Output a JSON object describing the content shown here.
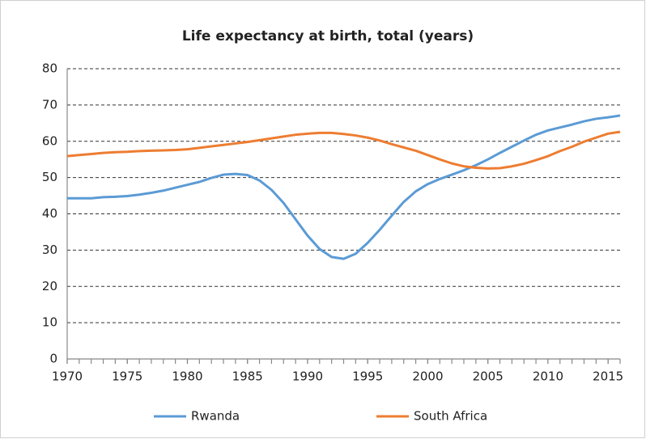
{
  "chart_data": {
    "type": "line",
    "title": "Life expectancy at birth, total (years)",
    "x": [
      1970,
      1971,
      1972,
      1973,
      1974,
      1975,
      1976,
      1977,
      1978,
      1979,
      1980,
      1981,
      1982,
      1983,
      1984,
      1985,
      1986,
      1987,
      1988,
      1989,
      1990,
      1991,
      1992,
      1993,
      1994,
      1995,
      1996,
      1997,
      1998,
      1999,
      2000,
      2001,
      2002,
      2003,
      2004,
      2005,
      2006,
      2007,
      2008,
      2009,
      2010,
      2011,
      2012,
      2013,
      2014,
      2015,
      2016
    ],
    "series": [
      {
        "name": "Rwanda",
        "color": "#5b9bd5",
        "values": [
          44.3,
          44.3,
          44.3,
          44.6,
          44.7,
          44.9,
          45.3,
          45.8,
          46.4,
          47.2,
          48.0,
          48.8,
          49.9,
          50.8,
          51.0,
          50.7,
          49.2,
          46.6,
          43.0,
          38.5,
          34.0,
          30.3,
          28.1,
          27.6,
          29.0,
          32.0,
          35.6,
          39.5,
          43.3,
          46.2,
          48.2,
          49.6,
          50.8,
          52.0,
          53.4,
          55.0,
          56.8,
          58.5,
          60.2,
          61.8,
          63.0,
          63.8,
          64.6,
          65.5,
          66.2,
          66.6,
          67.1
        ]
      },
      {
        "name": "South Africa",
        "color": "#ed7d31",
        "values": [
          55.9,
          56.2,
          56.5,
          56.8,
          57.0,
          57.1,
          57.3,
          57.4,
          57.5,
          57.6,
          57.8,
          58.2,
          58.6,
          59.0,
          59.4,
          59.8,
          60.3,
          60.8,
          61.3,
          61.8,
          62.1,
          62.3,
          62.3,
          62.0,
          61.6,
          61.0,
          60.2,
          59.2,
          58.3,
          57.4,
          56.2,
          55.0,
          53.9,
          53.1,
          52.7,
          52.5,
          52.6,
          53.1,
          53.8,
          54.8,
          55.9,
          57.3,
          58.5,
          59.9,
          61.0,
          62.1,
          62.6
        ]
      }
    ],
    "xlim": [
      1970,
      2016
    ],
    "xticks": [
      1970,
      1975,
      1980,
      1985,
      1990,
      1995,
      2000,
      2005,
      2010,
      2015
    ],
    "ylim": [
      0,
      80
    ],
    "yticks": [
      0,
      10,
      20,
      30,
      40,
      50,
      60,
      70,
      80
    ],
    "grid": true,
    "legend": "bottom"
  }
}
